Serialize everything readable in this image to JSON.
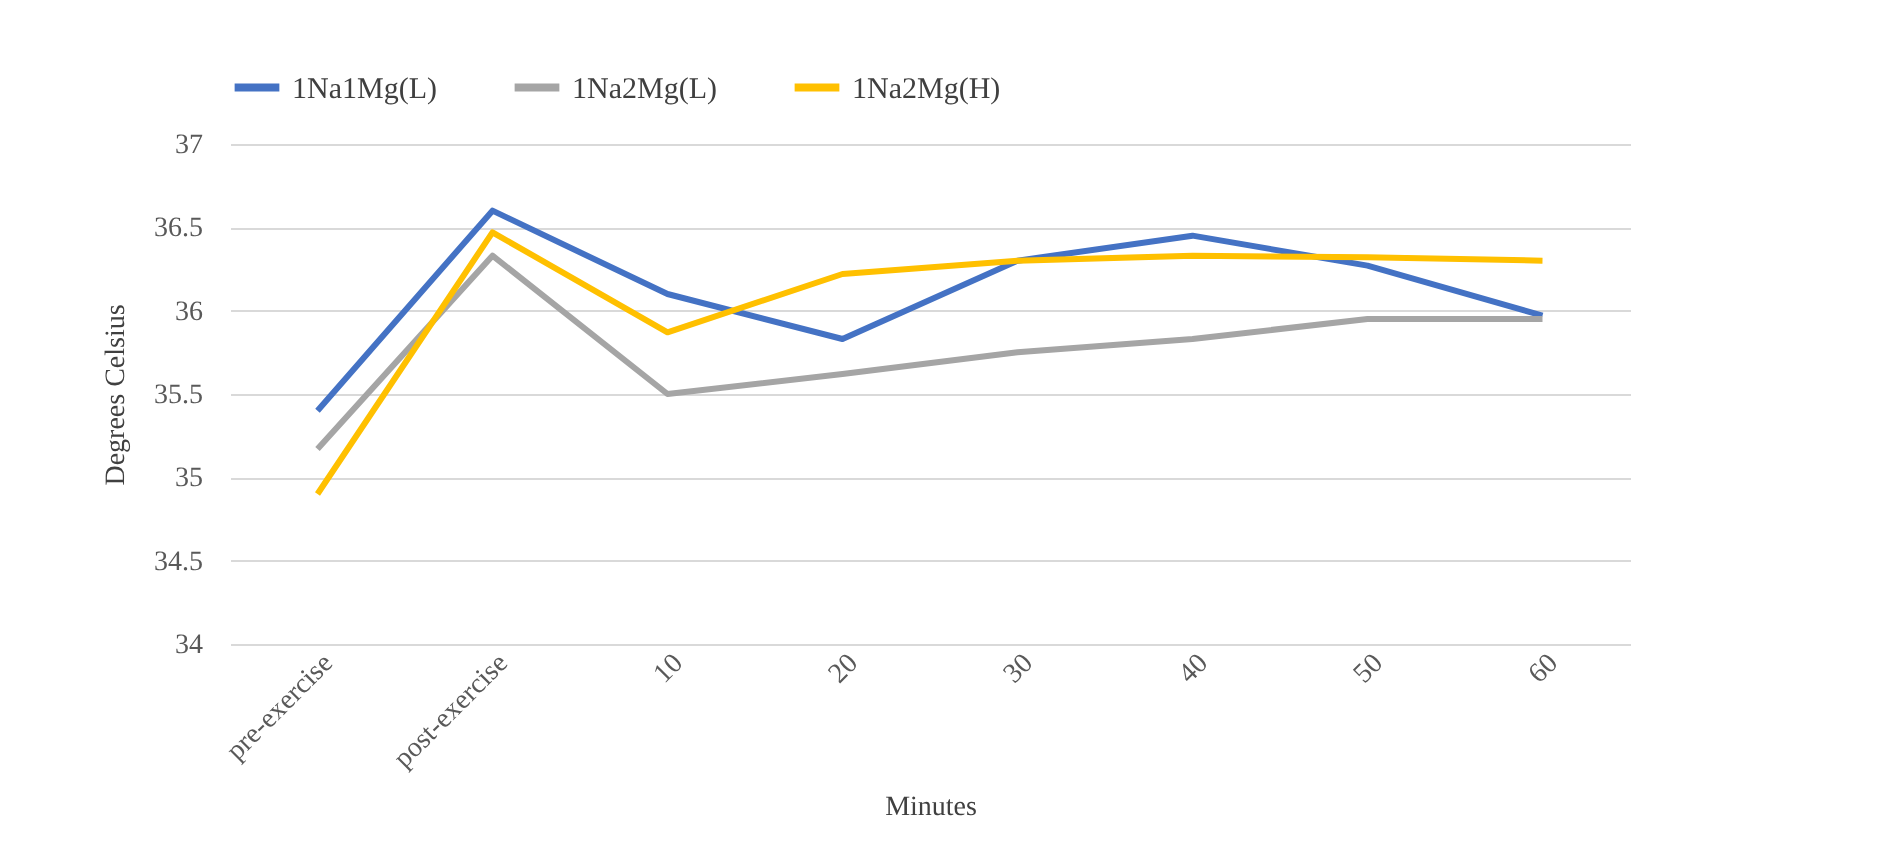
{
  "chart_data": {
    "type": "line",
    "xlabel": "Minutes",
    "ylabel": "Degrees Celsius",
    "categories": [
      "pre-exercise",
      "post-exercise",
      "10",
      "20",
      "30",
      "40",
      "50",
      "60"
    ],
    "series": [
      {
        "name": "1Na1Mg(L)",
        "color": "#4472c4",
        "values": [
          35.4,
          36.6,
          36.1,
          35.83,
          36.3,
          36.45,
          36.27,
          35.97
        ]
      },
      {
        "name": "1Na2Mg(L)",
        "color": "#a5a5a5",
        "values": [
          35.17,
          36.33,
          35.5,
          35.62,
          35.75,
          35.83,
          35.95,
          35.95
        ]
      },
      {
        "name": "1Na2Mg(H)",
        "color": "#ffc000",
        "values": [
          34.9,
          36.47,
          35.87,
          36.22,
          36.3,
          36.33,
          36.32,
          36.3
        ]
      }
    ],
    "ylim": [
      34,
      37
    ],
    "yticks": [
      34,
      34.5,
      35,
      35.5,
      36,
      36.5,
      37
    ],
    "grid": "y",
    "legend": "top",
    "marker": "none",
    "line_style": "solid"
  }
}
